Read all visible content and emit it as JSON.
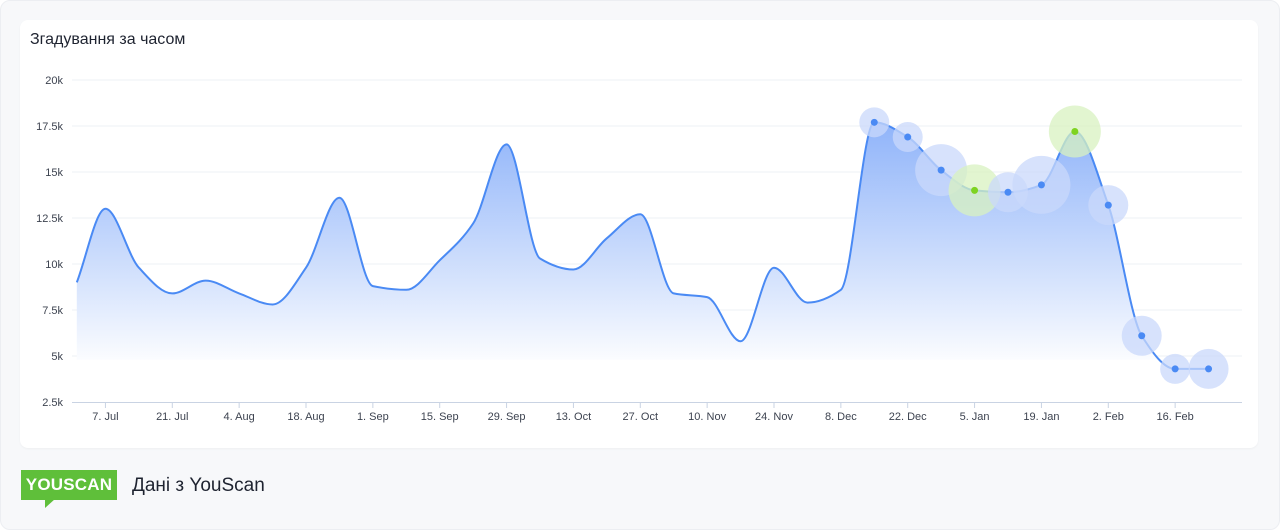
{
  "chart_data": {
    "type": "area",
    "title": "Згадування за часом",
    "xlabel": "",
    "ylabel": "",
    "ylim": [
      2500,
      20000
    ],
    "y_ticks": [
      2500,
      5000,
      7500,
      10000,
      12500,
      15000,
      17500,
      20000
    ],
    "y_tick_labels": [
      "2.5k",
      "5k",
      "7.5k",
      "10k",
      "12.5k",
      "15k",
      "17.5k",
      "20k"
    ],
    "x_range": [
      "2024-06-30",
      "2025-03-02"
    ],
    "x_ticks": [
      "2024-07-07",
      "2024-07-21",
      "2024-08-04",
      "2024-08-18",
      "2024-09-01",
      "2024-09-15",
      "2024-09-29",
      "2024-10-13",
      "2024-10-27",
      "2024-11-10",
      "2024-11-24",
      "2024-12-08",
      "2024-12-22",
      "2025-01-05",
      "2025-01-19",
      "2025-02-02",
      "2025-02-16"
    ],
    "x_tick_labels": [
      "7. Jul",
      "21. Jul",
      "4. Aug",
      "18. Aug",
      "1. Sep",
      "15. Sep",
      "29. Sep",
      "13. Oct",
      "27. Oct",
      "10. Nov",
      "24. Nov",
      "8. Dec",
      "22. Dec",
      "5. Jan",
      "19. Jan",
      "2. Feb",
      "16. Feb"
    ],
    "grid": true,
    "legend": "none",
    "colors": {
      "line": "#4a8af4",
      "fill_top": "#8ab0f9",
      "fill_bottom": "#ffffff",
      "marker": "#4a8af4",
      "highlight": "#7ed321",
      "bubble": "#c9d8fb",
      "bubble_highlight": "#d8f2c0"
    },
    "series": [
      {
        "points": [
          [
            "2024-07-01",
            9000
          ],
          [
            "2024-07-07",
            13000
          ],
          [
            "2024-07-14",
            9800
          ],
          [
            "2024-07-21",
            8400
          ],
          [
            "2024-07-28",
            9100
          ],
          [
            "2024-08-04",
            8400
          ],
          [
            "2024-08-11",
            7800
          ],
          [
            "2024-08-18",
            9800
          ],
          [
            "2024-08-25",
            13600
          ],
          [
            "2024-09-01",
            8800
          ],
          [
            "2024-09-08",
            8600
          ],
          [
            "2024-09-15",
            10200
          ],
          [
            "2024-09-22",
            12200
          ],
          [
            "2024-09-29",
            16500
          ],
          [
            "2024-10-06",
            10300
          ],
          [
            "2024-10-13",
            9700
          ],
          [
            "2024-10-20",
            11400
          ],
          [
            "2024-10-27",
            12700
          ],
          [
            "2024-11-03",
            8400
          ],
          [
            "2024-11-10",
            8200
          ],
          [
            "2024-11-17",
            5800
          ],
          [
            "2024-11-24",
            9800
          ],
          [
            "2024-12-01",
            7900
          ],
          [
            "2024-12-08",
            8600
          ],
          [
            "2024-12-15",
            17700
          ],
          [
            "2024-12-22",
            16900
          ],
          [
            "2024-12-29",
            15100
          ],
          [
            "2025-01-05",
            14000
          ],
          [
            "2025-01-12",
            13900
          ],
          [
            "2025-01-19",
            14300
          ],
          [
            "2025-01-26",
            17200
          ],
          [
            "2025-02-02",
            13200
          ],
          [
            "2025-02-09",
            6100
          ],
          [
            "2025-02-16",
            4300
          ],
          [
            "2025-02-23",
            4300
          ]
        ]
      }
    ],
    "markers": [
      {
        "x": "2024-12-15",
        "y": 17700,
        "size": "small",
        "highlight": false
      },
      {
        "x": "2024-12-22",
        "y": 16900,
        "size": "small",
        "highlight": false
      },
      {
        "x": "2024-12-29",
        "y": 15100,
        "size": "large",
        "highlight": false
      },
      {
        "x": "2025-01-05",
        "y": 14000,
        "size": "large",
        "highlight": true
      },
      {
        "x": "2025-01-12",
        "y": 13900,
        "size": "medium",
        "highlight": false
      },
      {
        "x": "2025-01-19",
        "y": 14300,
        "size": "xlarge",
        "highlight": false
      },
      {
        "x": "2025-01-26",
        "y": 17200,
        "size": "large",
        "highlight": true
      },
      {
        "x": "2025-02-02",
        "y": 13200,
        "size": "medium",
        "highlight": false
      },
      {
        "x": "2025-02-09",
        "y": 6100,
        "size": "medium",
        "highlight": false
      },
      {
        "x": "2025-02-16",
        "y": 4300,
        "size": "small",
        "highlight": false
      },
      {
        "x": "2025-02-23",
        "y": 4300,
        "size": "medium",
        "highlight": false
      }
    ]
  },
  "footer": {
    "logo_text": "YOUSCAN",
    "source_text": "Дані з YouScan"
  }
}
